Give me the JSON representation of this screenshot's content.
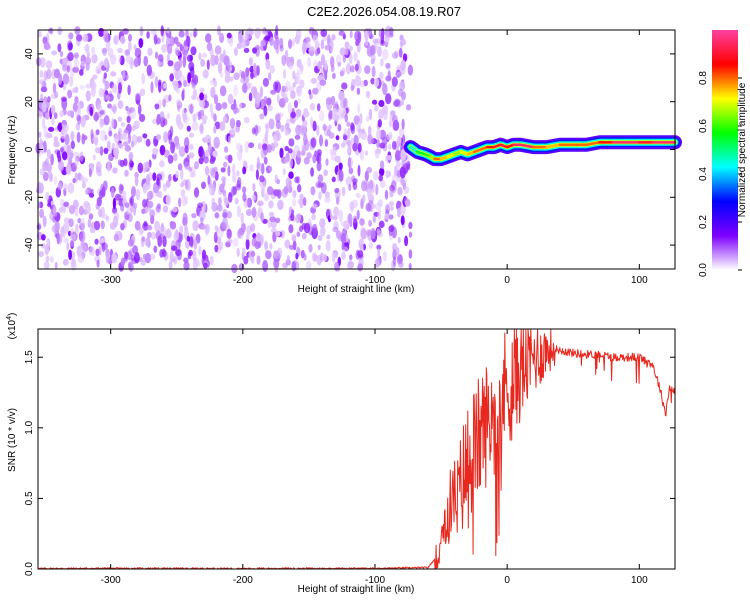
{
  "title": "C2E2.2026.054.08.19.R07",
  "chart_data": [
    {
      "type": "heatmap",
      "xlabel": "Height of straight line (km)",
      "ylabel": "Frequency (Hz)",
      "xlim": [
        -355,
        127
      ],
      "ylim": [
        -50,
        50
      ],
      "xticks": [
        -300,
        -200,
        -100,
        0,
        100
      ],
      "yticks": [
        -40,
        -20,
        0,
        20,
        40
      ],
      "noise_region_x": [
        -355,
        -73
      ],
      "signal_ridge": {
        "x": [
          -73,
          -68,
          -62,
          -58,
          -55,
          -50,
          -45,
          -40,
          -35,
          -30,
          -25,
          -20,
          -15,
          -10,
          -5,
          0,
          5,
          10,
          20,
          30,
          40,
          50,
          60,
          70,
          80,
          90,
          100,
          110,
          120,
          127
        ],
        "freq_hz": [
          1,
          -1,
          -2,
          -3,
          -4,
          -4,
          -3,
          -2,
          -1,
          -2,
          -1,
          0,
          1,
          1,
          2,
          1,
          2,
          2,
          1,
          1,
          2,
          2,
          2,
          3,
          3,
          3,
          3,
          3,
          3,
          3
        ],
        "amplitude": [
          0.45,
          0.55,
          0.6,
          0.65,
          0.8,
          0.75,
          0.7,
          0.65,
          0.7,
          0.75,
          0.8,
          0.8,
          0.85,
          0.9,
          0.9,
          0.85,
          0.95,
          0.95,
          0.8,
          0.75,
          0.8,
          0.8,
          0.8,
          0.85,
          0.95,
          0.95,
          0.9,
          0.95,
          0.95,
          0.95
        ]
      },
      "colorbar": {
        "label": "Normalized spectral amplitude",
        "range": [
          0,
          1
        ],
        "ticks": [
          "0.0",
          "0.2",
          "0.4",
          "0.6",
          "0.8"
        ],
        "colors": [
          "#ffffff",
          "#7d00ff",
          "#0000ff",
          "#00ffff",
          "#00ff00",
          "#ffff00",
          "#ff0000",
          "#ff40a0"
        ]
      }
    },
    {
      "type": "line",
      "xlabel": "Height of straight line (km)",
      "ylabel": "SNR (10 * v/v)",
      "multiplier": "(x10",
      "multiplier_exp": "4",
      "multiplier_close": ")",
      "xlim": [
        -355,
        127
      ],
      "ylim": [
        0,
        1.7
      ],
      "xticks": [
        -300,
        -200,
        -100,
        0,
        100
      ],
      "yticks": [
        0.0,
        0.5,
        1.0,
        1.5
      ],
      "series": [
        {
          "name": "SNR",
          "color": "#e8281e",
          "x": [
            -355,
            -300,
            -200,
            -100,
            -60,
            -52,
            -48,
            -45,
            -42,
            -38,
            -35,
            -30,
            -25,
            -20,
            -15,
            -10,
            -5,
            0,
            5,
            10,
            15,
            20,
            25,
            30,
            35,
            40,
            50,
            60,
            70,
            80,
            90,
            100,
            110,
            115,
            120,
            123,
            127
          ],
          "y": [
            0.003,
            0.004,
            0.003,
            0.004,
            0.01,
            0.1,
            0.35,
            0.3,
            0.55,
            0.45,
            0.6,
            0.75,
            0.85,
            0.95,
            1.05,
            1.1,
            1.2,
            1.3,
            1.35,
            1.4,
            1.45,
            1.5,
            1.52,
            1.55,
            1.56,
            1.55,
            1.53,
            1.52,
            1.52,
            1.5,
            1.5,
            1.5,
            1.45,
            1.3,
            1.1,
            1.3,
            1.25
          ]
        }
      ]
    }
  ]
}
